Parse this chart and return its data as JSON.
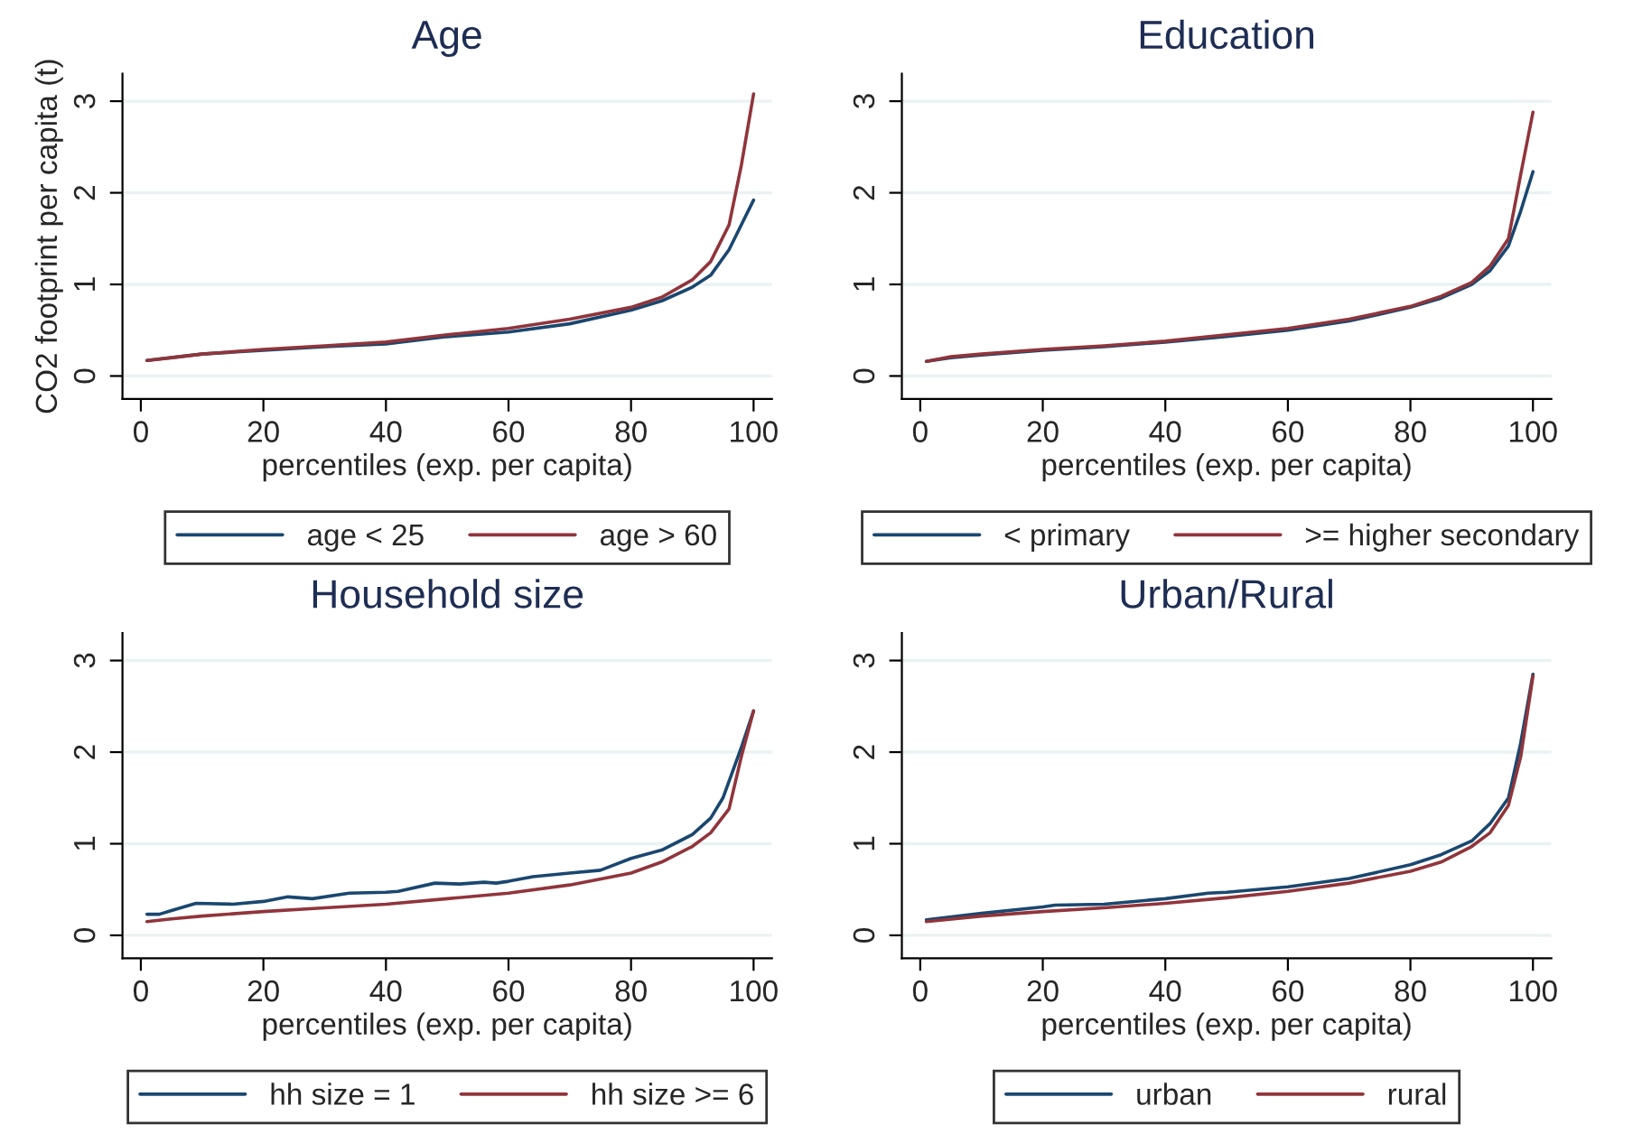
{
  "chart_data": [
    {
      "type": "line",
      "title": "Age",
      "xlabel": "percentiles (exp. per capita)",
      "ylabel": "CO2 footprint per capita (t)",
      "xlim": [
        -3,
        103
      ],
      "xticks": [
        0,
        20,
        40,
        60,
        80,
        100
      ],
      "ylim": [
        -0.25,
        3.3
      ],
      "yticks": [
        0,
        1,
        2,
        3
      ],
      "grid": "y",
      "legend": "bottom",
      "series": [
        {
          "name": "age < 25",
          "color": "#1a476f",
          "x": [
            1,
            5,
            10,
            20,
            30,
            40,
            50,
            60,
            70,
            80,
            85,
            90,
            93,
            96,
            98,
            100
          ],
          "values": [
            0.17,
            0.2,
            0.24,
            0.28,
            0.32,
            0.35,
            0.43,
            0.48,
            0.57,
            0.72,
            0.82,
            0.97,
            1.1,
            1.38,
            1.65,
            1.92
          ]
        },
        {
          "name": "age > 60",
          "color": "#90353b",
          "x": [
            1,
            5,
            10,
            20,
            30,
            40,
            50,
            60,
            70,
            80,
            85,
            90,
            93,
            96,
            98,
            100
          ],
          "values": [
            0.17,
            0.2,
            0.24,
            0.29,
            0.33,
            0.37,
            0.45,
            0.52,
            0.62,
            0.75,
            0.86,
            1.05,
            1.25,
            1.65,
            2.3,
            3.08
          ]
        }
      ]
    },
    {
      "type": "line",
      "title": "Education",
      "xlabel": "percentiles (exp. per capita)",
      "xlim": [
        -3,
        103
      ],
      "xticks": [
        0,
        20,
        40,
        60,
        80,
        100
      ],
      "ylim": [
        -0.25,
        3.3
      ],
      "yticks": [
        0,
        1,
        2,
        3
      ],
      "grid": "y",
      "legend": "bottom",
      "series": [
        {
          "name": "< primary",
          "color": "#1a476f",
          "x": [
            1,
            5,
            10,
            20,
            30,
            40,
            50,
            60,
            70,
            80,
            85,
            90,
            93,
            96,
            98,
            100
          ],
          "values": [
            0.16,
            0.2,
            0.23,
            0.28,
            0.32,
            0.37,
            0.43,
            0.5,
            0.6,
            0.75,
            0.85,
            1.0,
            1.15,
            1.42,
            1.8,
            2.23
          ]
        },
        {
          "name": ">= higher secondary",
          "color": "#90353b",
          "x": [
            1,
            5,
            10,
            20,
            30,
            40,
            50,
            60,
            70,
            80,
            85,
            90,
            93,
            96,
            98,
            100
          ],
          "values": [
            0.16,
            0.21,
            0.24,
            0.29,
            0.33,
            0.38,
            0.45,
            0.52,
            0.62,
            0.76,
            0.87,
            1.02,
            1.2,
            1.5,
            2.2,
            2.88
          ]
        }
      ]
    },
    {
      "type": "line",
      "title": "Household size",
      "xlabel": "percentiles (exp. per capita)",
      "xlim": [
        -3,
        103
      ],
      "xticks": [
        0,
        20,
        40,
        60,
        80,
        100
      ],
      "ylim": [
        -0.25,
        3.3
      ],
      "yticks": [
        0,
        1,
        2,
        3
      ],
      "grid": "y",
      "legend": "bottom",
      "series": [
        {
          "name": "hh size = 1",
          "color": "#1a476f",
          "x": [
            1,
            3,
            5,
            9,
            15,
            20,
            24,
            28,
            34,
            40,
            42,
            48,
            52,
            56,
            58,
            60,
            64,
            70,
            75,
            80,
            85,
            90,
            93,
            95,
            98,
            100
          ],
          "values": [
            0.23,
            0.23,
            0.27,
            0.35,
            0.34,
            0.37,
            0.42,
            0.4,
            0.46,
            0.47,
            0.48,
            0.57,
            0.56,
            0.58,
            0.57,
            0.59,
            0.64,
            0.68,
            0.71,
            0.84,
            0.93,
            1.1,
            1.28,
            1.5,
            2.05,
            2.45
          ]
        },
        {
          "name": "hh size >= 6",
          "color": "#90353b",
          "x": [
            1,
            5,
            10,
            20,
            30,
            40,
            50,
            60,
            70,
            80,
            85,
            90,
            93,
            96,
            98,
            100
          ],
          "values": [
            0.15,
            0.18,
            0.21,
            0.26,
            0.3,
            0.34,
            0.4,
            0.46,
            0.55,
            0.68,
            0.8,
            0.97,
            1.12,
            1.38,
            1.95,
            2.45
          ]
        }
      ]
    },
    {
      "type": "line",
      "title": "Urban/Rural",
      "xlabel": "percentiles (exp. per capita)",
      "xlim": [
        -3,
        103
      ],
      "xticks": [
        0,
        20,
        40,
        60,
        80,
        100
      ],
      "ylim": [
        -0.25,
        3.3
      ],
      "yticks": [
        0,
        1,
        2,
        3
      ],
      "grid": "y",
      "legend": "bottom",
      "series": [
        {
          "name": "urban",
          "color": "#1a476f",
          "x": [
            1,
            10,
            20,
            22,
            30,
            40,
            47,
            50,
            60,
            70,
            80,
            85,
            90,
            93,
            96,
            98,
            100
          ],
          "values": [
            0.17,
            0.24,
            0.31,
            0.33,
            0.34,
            0.4,
            0.46,
            0.47,
            0.53,
            0.62,
            0.77,
            0.88,
            1.03,
            1.22,
            1.5,
            2.1,
            2.85
          ]
        },
        {
          "name": "rural",
          "color": "#90353b",
          "x": [
            1,
            10,
            20,
            30,
            40,
            50,
            60,
            70,
            80,
            85,
            90,
            93,
            96,
            98,
            100
          ],
          "values": [
            0.15,
            0.21,
            0.26,
            0.3,
            0.35,
            0.41,
            0.48,
            0.57,
            0.7,
            0.8,
            0.97,
            1.12,
            1.42,
            1.95,
            2.83
          ]
        }
      ]
    }
  ]
}
